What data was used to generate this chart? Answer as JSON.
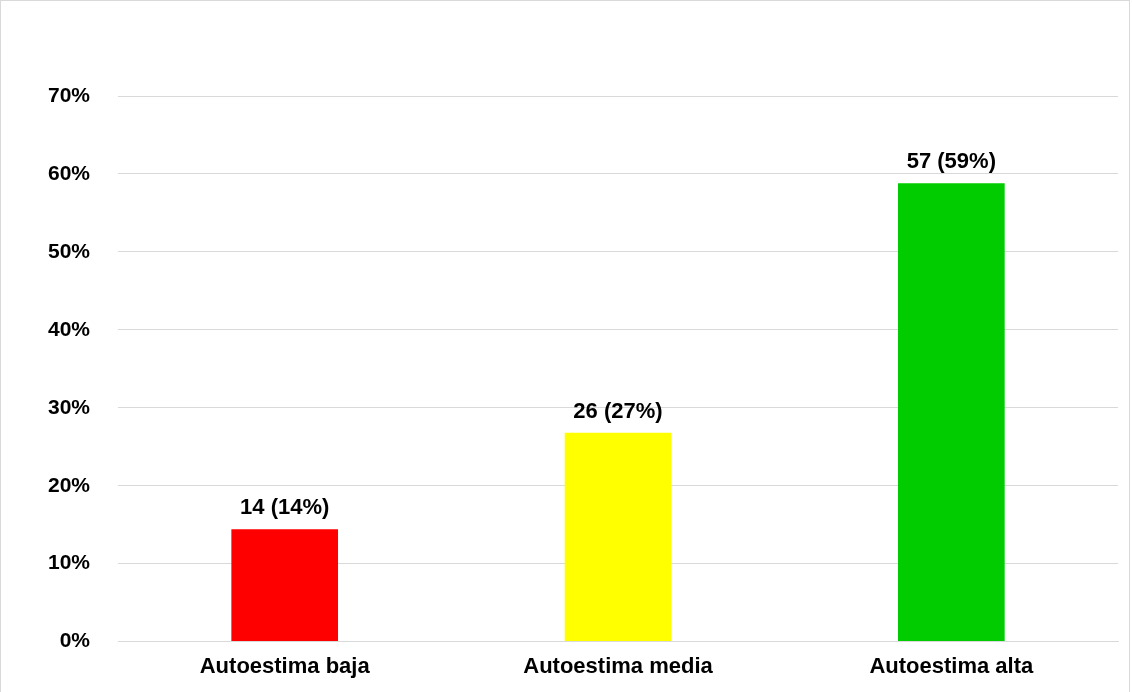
{
  "chart_data": {
    "type": "bar",
    "categories": [
      "Autoestima baja",
      "Autoestima media",
      "Autoestima alta"
    ],
    "values": [
      14.4,
      26.8,
      58.8
    ],
    "colors": [
      "#ff0000",
      "#ffff00",
      "#00cc00"
    ],
    "value_labels": [
      "14 (14%)",
      "26 (27%)",
      "57 (59%)"
    ],
    "ylim": [
      0,
      70
    ],
    "yticks": [
      {
        "value": 0,
        "label": "0%"
      },
      {
        "value": 10,
        "label": "10%"
      },
      {
        "value": 20,
        "label": "20%"
      },
      {
        "value": 30,
        "label": "30%"
      },
      {
        "value": 40,
        "label": "40%"
      },
      {
        "value": 50,
        "label": "50%"
      },
      {
        "value": 60,
        "label": "60%"
      },
      {
        "value": 70,
        "label": "70%"
      }
    ],
    "grid": "y",
    "legend": false
  }
}
